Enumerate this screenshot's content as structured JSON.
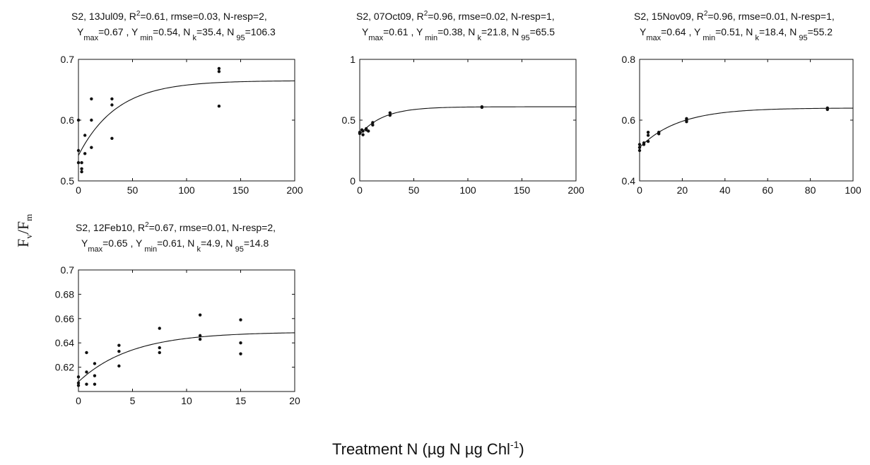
{
  "figure": {
    "ylabel_main": "F",
    "ylabel_sub1": "v",
    "ylabel_slash": "/F",
    "ylabel_sub2": "m",
    "xlabel_text": "Treatment N (µg N µg Chl",
    "xlabel_sup": "-1",
    "xlabel_close": ")"
  },
  "chart_data": [
    {
      "type": "scatter",
      "site": "S2,",
      "date": "13Jul09,",
      "r2": "=0.61,",
      "rmse_nresp": "rmse=0.03, N-resp=2,",
      "ymax": "=0.67 ,",
      "ymin": "=0.54,",
      "nk": "=35.4,",
      "n95": "=106.3",
      "xlim": [
        0,
        200
      ],
      "ylim": [
        0.5,
        0.7
      ],
      "xticks": [
        0,
        50,
        100,
        150,
        200
      ],
      "yticks": [
        0.5,
        0.6,
        0.7
      ],
      "xtick_labels": [
        "0",
        "50",
        "100",
        "150",
        "200"
      ],
      "ytick_labels": [
        "0.5",
        "0.6",
        "0.7"
      ],
      "fit": {
        "ymin": 0.542,
        "ymax": 0.665,
        "k": 35.4
      },
      "points": [
        [
          0,
          0.55
        ],
        [
          0,
          0.53
        ],
        [
          0,
          0.6
        ],
        [
          3,
          0.52
        ],
        [
          3,
          0.515
        ],
        [
          3,
          0.53
        ],
        [
          6,
          0.545
        ],
        [
          6,
          0.575
        ],
        [
          12,
          0.635
        ],
        [
          12,
          0.6
        ],
        [
          12,
          0.555
        ],
        [
          31,
          0.635
        ],
        [
          31,
          0.625
        ],
        [
          31,
          0.57
        ],
        [
          130,
          0.685
        ],
        [
          130,
          0.68
        ],
        [
          130,
          0.623
        ]
      ]
    },
    {
      "type": "scatter",
      "site": "S2,",
      "date": "07Oct09,",
      "r2": "=0.96,",
      "rmse_nresp": "rmse=0.02, N-resp=1,",
      "ymax": "=0.61 ,",
      "ymin": "=0.38,",
      "nk": "=21.8,",
      "n95": "=65.5",
      "xlim": [
        0,
        200
      ],
      "ylim": [
        0,
        1
      ],
      "xticks": [
        0,
        50,
        100,
        150,
        200
      ],
      "yticks": [
        0,
        0.5,
        1
      ],
      "xtick_labels": [
        "0",
        "50",
        "100",
        "150",
        "200"
      ],
      "ytick_labels": [
        "0",
        "0.5",
        "1"
      ],
      "fit": {
        "ymin": 0.38,
        "ymax": 0.61,
        "k": 21.8
      },
      "points": [
        [
          0,
          0.4
        ],
        [
          0,
          0.39
        ],
        [
          2,
          0.42
        ],
        [
          3,
          0.38
        ],
        [
          3,
          0.41
        ],
        [
          6,
          0.43
        ],
        [
          6,
          0.42
        ],
        [
          8,
          0.41
        ],
        [
          12,
          0.46
        ],
        [
          12,
          0.48
        ],
        [
          28,
          0.54
        ],
        [
          28,
          0.56
        ],
        [
          113,
          0.61
        ],
        [
          113,
          0.605
        ]
      ]
    },
    {
      "type": "scatter",
      "site": "S2,",
      "date": "15Nov09,",
      "r2": "=0.96,",
      "rmse_nresp": "rmse=0.01, N-resp=1,",
      "ymax": "=0.64 ,",
      "ymin": "=0.51,",
      "nk": "=18.4,",
      "n95": "=55.2",
      "xlim": [
        0,
        100
      ],
      "ylim": [
        0.4,
        0.8
      ],
      "xticks": [
        0,
        20,
        40,
        60,
        80,
        100
      ],
      "yticks": [
        0.4,
        0.6,
        0.8
      ],
      "xtick_labels": [
        "0",
        "20",
        "40",
        "60",
        "80",
        "100"
      ],
      "ytick_labels": [
        "0.4",
        "0.6",
        "0.8"
      ],
      "fit": {
        "ymin": 0.51,
        "ymax": 0.64,
        "k": 18.4
      },
      "points": [
        [
          0,
          0.52
        ],
        [
          0,
          0.5
        ],
        [
          0,
          0.51
        ],
        [
          2,
          0.52
        ],
        [
          2,
          0.525
        ],
        [
          4,
          0.53
        ],
        [
          4,
          0.55
        ],
        [
          4,
          0.56
        ],
        [
          9,
          0.555
        ],
        [
          9,
          0.56
        ],
        [
          22,
          0.595
        ],
        [
          22,
          0.6
        ],
        [
          22,
          0.605
        ],
        [
          88,
          0.635
        ],
        [
          88,
          0.64
        ]
      ]
    },
    {
      "type": "scatter",
      "site": "S2,",
      "date": "12Feb10,",
      "r2": "=0.67,",
      "rmse_nresp": "rmse=0.01, N-resp=2,",
      "ymax": "=0.65 ,",
      "ymin": "=0.61,",
      "nk": "=4.9,",
      "n95": "=14.8",
      "xlim": [
        0,
        20
      ],
      "ylim": [
        0.6,
        0.7
      ],
      "xticks": [
        0,
        5,
        10,
        15,
        20
      ],
      "yticks": [
        0.62,
        0.64,
        0.66,
        0.68,
        0.7
      ],
      "xtick_labels": [
        "0",
        "5",
        "10",
        "15",
        "20"
      ],
      "ytick_labels": [
        "0.62",
        "0.64",
        "0.66",
        "0.68",
        "0.7"
      ],
      "fit": {
        "ymin": 0.608,
        "ymax": 0.649,
        "k": 4.9
      },
      "points": [
        [
          0,
          0.612
        ],
        [
          0,
          0.607
        ],
        [
          0,
          0.605
        ],
        [
          0.75,
          0.632
        ],
        [
          0.75,
          0.616
        ],
        [
          0.75,
          0.606
        ],
        [
          1.5,
          0.623
        ],
        [
          1.5,
          0.613
        ],
        [
          1.5,
          0.606
        ],
        [
          3.75,
          0.638
        ],
        [
          3.75,
          0.633
        ],
        [
          3.75,
          0.621
        ],
        [
          7.5,
          0.652
        ],
        [
          7.5,
          0.636
        ],
        [
          7.5,
          0.632
        ],
        [
          11.25,
          0.663
        ],
        [
          11.25,
          0.646
        ],
        [
          11.25,
          0.643
        ],
        [
          15,
          0.659
        ],
        [
          15,
          0.64
        ],
        [
          15,
          0.631
        ]
      ]
    }
  ]
}
